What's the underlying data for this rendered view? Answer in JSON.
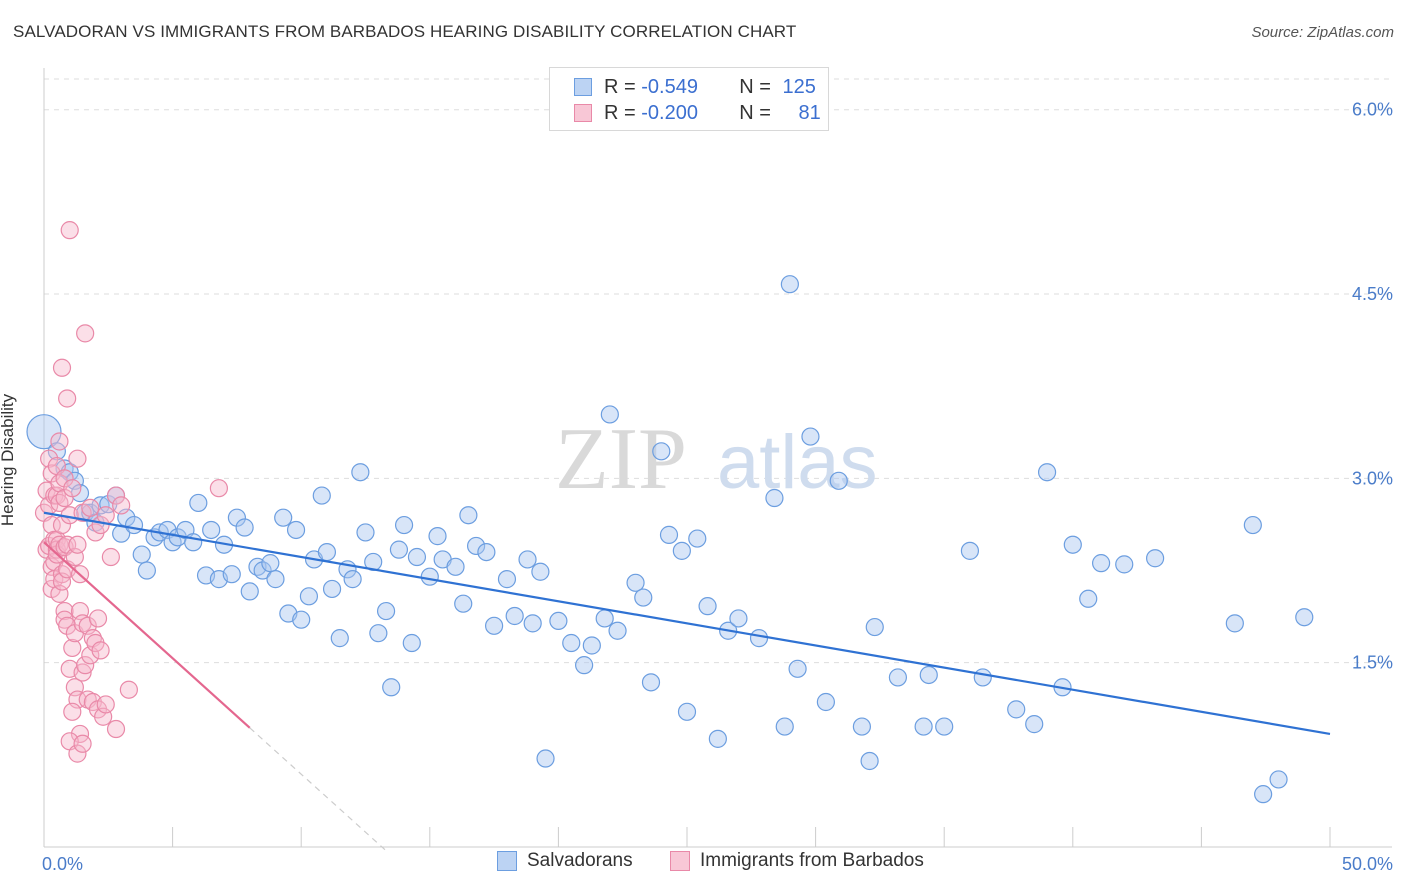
{
  "title": "SALVADORAN VS IMMIGRANTS FROM BARBADOS HEARING DISABILITY CORRELATION CHART",
  "source": "Source: ZipAtlas.com",
  "watermark": {
    "part1": "ZIP",
    "part2": "atlas"
  },
  "legend_top": [
    {
      "r_label": "R =",
      "r_value": "-0.549",
      "n_label": "N =",
      "n_value": "125"
    },
    {
      "r_label": "R =",
      "r_value": "-0.200",
      "n_label": "N =",
      "n_value": "81"
    }
  ],
  "legend_bottom": [
    {
      "label": "Salvadorans"
    },
    {
      "label": "Immigrants from Barbados"
    }
  ],
  "colors": {
    "blue_fill": "#a9c6ef",
    "blue_stroke": "#6c9ee0",
    "blue_line": "#2f72d3",
    "pink_fill": "#f6b8cb",
    "pink_stroke": "#e989a8",
    "pink_line": "#e4678f",
    "grid": "#dddddd",
    "tick_text": "#4a7cc9"
  },
  "chart_data": {
    "type": "scatter",
    "title": "SALVADORAN VS IMMIGRANTS FROM BARBADOS HEARING DISABILITY CORRELATION CHART",
    "xlabel": "",
    "ylabel": "Hearing Disability",
    "xlim": [
      0,
      50
    ],
    "ylim": [
      0,
      6.25
    ],
    "x_tick_labels": [
      "0.0%",
      "50.0%"
    ],
    "y_ticks": [
      1.5,
      3.0,
      4.5,
      6.0
    ],
    "y_tick_labels": [
      "1.5%",
      "3.0%",
      "4.5%",
      "6.0%"
    ],
    "series": [
      {
        "name": "Salvadorans",
        "r": -0.549,
        "n": 125,
        "trend": {
          "x": [
            0,
            50
          ],
          "y": [
            2.72,
            0.92
          ]
        },
        "points": [
          [
            0.0,
            3.38
          ],
          [
            0.5,
            3.22
          ],
          [
            0.8,
            3.08
          ],
          [
            1.0,
            3.05
          ],
          [
            1.2,
            2.98
          ],
          [
            1.4,
            2.88
          ],
          [
            1.6,
            2.72
          ],
          [
            1.8,
            2.72
          ],
          [
            2.0,
            2.64
          ],
          [
            2.2,
            2.78
          ],
          [
            2.5,
            2.79
          ],
          [
            2.8,
            2.86
          ],
          [
            3.0,
            2.55
          ],
          [
            3.2,
            2.68
          ],
          [
            3.5,
            2.62
          ],
          [
            3.8,
            2.38
          ],
          [
            4.0,
            2.25
          ],
          [
            4.3,
            2.52
          ],
          [
            4.5,
            2.56
          ],
          [
            4.8,
            2.58
          ],
          [
            5.0,
            2.48
          ],
          [
            5.2,
            2.52
          ],
          [
            5.5,
            2.58
          ],
          [
            5.8,
            2.48
          ],
          [
            6.0,
            2.8
          ],
          [
            6.3,
            2.21
          ],
          [
            6.5,
            2.58
          ],
          [
            6.8,
            2.18
          ],
          [
            7.0,
            2.46
          ],
          [
            7.3,
            2.22
          ],
          [
            7.5,
            2.68
          ],
          [
            7.8,
            2.6
          ],
          [
            8.0,
            2.08
          ],
          [
            8.3,
            2.28
          ],
          [
            8.5,
            2.25
          ],
          [
            8.8,
            2.31
          ],
          [
            9.0,
            2.18
          ],
          [
            9.3,
            2.68
          ],
          [
            9.5,
            1.9
          ],
          [
            9.8,
            2.58
          ],
          [
            10.0,
            1.85
          ],
          [
            10.3,
            2.04
          ],
          [
            10.5,
            2.34
          ],
          [
            10.8,
            2.86
          ],
          [
            11.0,
            2.4
          ],
          [
            11.2,
            2.1
          ],
          [
            11.5,
            1.7
          ],
          [
            11.8,
            2.26
          ],
          [
            12.0,
            2.18
          ],
          [
            12.3,
            3.05
          ],
          [
            12.5,
            2.56
          ],
          [
            12.8,
            2.32
          ],
          [
            13.0,
            1.74
          ],
          [
            13.3,
            1.92
          ],
          [
            13.5,
            1.3
          ],
          [
            13.8,
            2.42
          ],
          [
            14.0,
            2.62
          ],
          [
            14.3,
            1.66
          ],
          [
            14.5,
            2.36
          ],
          [
            15.0,
            2.2
          ],
          [
            15.3,
            2.53
          ],
          [
            15.5,
            2.34
          ],
          [
            16.0,
            2.28
          ],
          [
            16.3,
            1.98
          ],
          [
            16.5,
            2.7
          ],
          [
            16.8,
            2.45
          ],
          [
            17.2,
            2.4
          ],
          [
            17.5,
            1.8
          ],
          [
            18.0,
            2.18
          ],
          [
            18.3,
            1.88
          ],
          [
            18.8,
            2.34
          ],
          [
            19.0,
            1.82
          ],
          [
            19.3,
            2.24
          ],
          [
            19.5,
            0.72
          ],
          [
            20.0,
            1.84
          ],
          [
            20.5,
            1.66
          ],
          [
            21.0,
            1.48
          ],
          [
            21.3,
            1.64
          ],
          [
            21.8,
            1.86
          ],
          [
            22.0,
            3.52
          ],
          [
            22.3,
            1.76
          ],
          [
            23.0,
            2.15
          ],
          [
            23.3,
            2.03
          ],
          [
            23.6,
            1.34
          ],
          [
            24.0,
            3.22
          ],
          [
            24.3,
            2.54
          ],
          [
            24.8,
            2.41
          ],
          [
            25.0,
            1.1
          ],
          [
            25.4,
            2.51
          ],
          [
            25.8,
            1.96
          ],
          [
            26.2,
            0.88
          ],
          [
            26.6,
            1.76
          ],
          [
            27.0,
            1.86
          ],
          [
            27.8,
            1.7
          ],
          [
            28.4,
            2.84
          ],
          [
            28.8,
            0.98
          ],
          [
            29.3,
            1.45
          ],
          [
            29.8,
            3.34
          ],
          [
            30.4,
            1.18
          ],
          [
            30.9,
            2.98
          ],
          [
            31.8,
            0.98
          ],
          [
            32.1,
            0.7
          ],
          [
            33.2,
            1.38
          ],
          [
            34.2,
            0.98
          ],
          [
            35.0,
            0.98
          ],
          [
            36.0,
            2.41
          ],
          [
            36.5,
            1.38
          ],
          [
            37.8,
            1.12
          ],
          [
            38.5,
            1.0
          ],
          [
            39.0,
            3.05
          ],
          [
            40.0,
            2.46
          ],
          [
            40.6,
            2.02
          ],
          [
            41.1,
            2.31
          ],
          [
            42.0,
            2.3
          ],
          [
            43.2,
            2.35
          ],
          [
            46.3,
            1.82
          ],
          [
            47.0,
            2.62
          ],
          [
            48.0,
            0.55
          ],
          [
            49.0,
            1.87
          ],
          [
            47.4,
            0.43
          ],
          [
            39.6,
            1.3
          ],
          [
            34.4,
            1.4
          ],
          [
            32.3,
            1.79
          ],
          [
            29.0,
            4.58
          ]
        ]
      },
      {
        "name": "Immigrants from Barbados",
        "r": -0.2,
        "n": 81,
        "trend": {
          "x": [
            0,
            8
          ],
          "y": [
            2.48,
            0.97
          ]
        },
        "trend_dashed": {
          "x": [
            8,
            13.3
          ],
          "y": [
            0.97,
            -0.03
          ]
        },
        "points": [
          [
            0.0,
            2.72
          ],
          [
            0.1,
            2.9
          ],
          [
            0.1,
            2.42
          ],
          [
            0.2,
            3.16
          ],
          [
            0.2,
            2.78
          ],
          [
            0.2,
            2.45
          ],
          [
            0.3,
            3.04
          ],
          [
            0.3,
            2.62
          ],
          [
            0.3,
            2.28
          ],
          [
            0.3,
            2.1
          ],
          [
            0.4,
            2.86
          ],
          [
            0.4,
            2.5
          ],
          [
            0.4,
            2.32
          ],
          [
            0.4,
            2.18
          ],
          [
            0.5,
            3.1
          ],
          [
            0.5,
            2.86
          ],
          [
            0.5,
            2.5
          ],
          [
            0.5,
            2.42
          ],
          [
            0.5,
            2.38
          ],
          [
            0.6,
            3.3
          ],
          [
            0.6,
            2.96
          ],
          [
            0.6,
            2.8
          ],
          [
            0.6,
            2.46
          ],
          [
            0.6,
            2.06
          ],
          [
            0.7,
            3.9
          ],
          [
            0.7,
            2.62
          ],
          [
            0.7,
            2.22
          ],
          [
            0.7,
            2.16
          ],
          [
            0.8,
            3.0
          ],
          [
            0.8,
            2.84
          ],
          [
            0.8,
            2.44
          ],
          [
            0.8,
            1.92
          ],
          [
            0.8,
            1.85
          ],
          [
            0.9,
            3.65
          ],
          [
            0.9,
            2.46
          ],
          [
            0.9,
            2.26
          ],
          [
            0.9,
            1.8
          ],
          [
            1.0,
            5.02
          ],
          [
            1.0,
            2.7
          ],
          [
            1.0,
            1.45
          ],
          [
            1.1,
            2.92
          ],
          [
            1.1,
            1.62
          ],
          [
            1.2,
            2.36
          ],
          [
            1.2,
            1.74
          ],
          [
            1.2,
            1.3
          ],
          [
            1.3,
            3.16
          ],
          [
            1.3,
            2.46
          ],
          [
            1.3,
            1.2
          ],
          [
            1.4,
            2.22
          ],
          [
            1.4,
            1.92
          ],
          [
            1.4,
            0.92
          ],
          [
            1.5,
            2.72
          ],
          [
            1.5,
            1.82
          ],
          [
            1.5,
            1.42
          ],
          [
            1.6,
            4.18
          ],
          [
            1.6,
            1.48
          ],
          [
            1.7,
            1.8
          ],
          [
            1.7,
            1.2
          ],
          [
            1.8,
            2.76
          ],
          [
            1.8,
            1.56
          ],
          [
            1.9,
            1.7
          ],
          [
            1.9,
            1.18
          ],
          [
            2.0,
            2.56
          ],
          [
            2.0,
            1.66
          ],
          [
            2.1,
            1.86
          ],
          [
            2.1,
            1.12
          ],
          [
            2.2,
            2.62
          ],
          [
            2.2,
            1.6
          ],
          [
            2.3,
            1.06
          ],
          [
            2.4,
            2.7
          ],
          [
            2.4,
            1.16
          ],
          [
            2.6,
            2.36
          ],
          [
            2.8,
            2.86
          ],
          [
            2.8,
            0.96
          ],
          [
            3.0,
            2.78
          ],
          [
            3.3,
            1.28
          ],
          [
            6.8,
            2.92
          ],
          [
            1.0,
            0.86
          ],
          [
            1.1,
            1.1
          ],
          [
            1.3,
            0.76
          ],
          [
            1.5,
            0.84
          ]
        ]
      }
    ]
  }
}
